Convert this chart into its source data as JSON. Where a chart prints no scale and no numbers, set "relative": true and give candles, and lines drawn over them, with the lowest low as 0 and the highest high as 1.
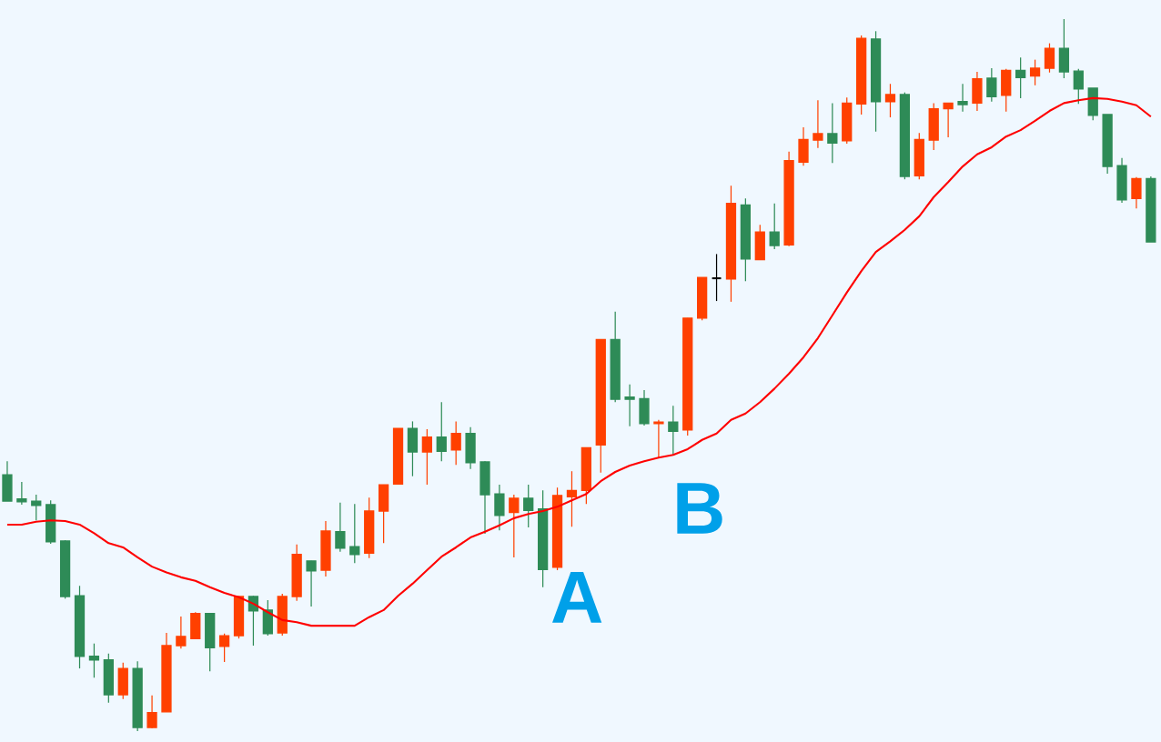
{
  "chart_data": {
    "type": "candlestick",
    "relative": true,
    "categories": [
      null,
      null,
      null,
      null,
      null,
      null,
      null,
      null,
      null,
      null,
      null,
      null,
      null,
      null,
      null,
      null,
      null,
      null,
      null,
      null,
      null,
      null,
      null,
      null,
      null,
      null,
      null,
      null,
      null,
      null,
      null,
      null,
      null,
      null,
      null,
      null,
      null,
      null,
      null,
      null,
      null,
      null,
      null,
      null,
      null,
      null,
      null,
      null,
      null,
      null,
      null,
      null,
      null,
      null,
      null,
      null,
      null,
      null,
      null,
      null,
      null,
      null,
      null,
      null,
      null,
      null,
      null,
      null,
      null,
      null,
      null,
      null,
      null,
      null,
      null,
      null,
      null,
      null,
      null,
      null
    ],
    "ohlc": [
      [
        0.36,
        0.379,
        0.323,
        0.323
      ],
      [
        0.326,
        0.35,
        0.318,
        0.322
      ],
      [
        0.323,
        0.332,
        0.296,
        0.317
      ],
      [
        0.318,
        0.324,
        0.263,
        0.266
      ],
      [
        0.267,
        0.268,
        0.186,
        0.189
      ],
      [
        0.19,
        0.204,
        0.088,
        0.105
      ],
      [
        0.105,
        0.123,
        0.075,
        0.1
      ],
      [
        0.1,
        0.109,
        0.04,
        0.051
      ],
      [
        0.051,
        0.096,
        0.045,
        0.088
      ],
      [
        0.088,
        0.098,
        0,
        0.005
      ],
      [
        0.005,
        0.05,
        0.004,
        0.026
      ],
      [
        0.027,
        0.138,
        0.027,
        0.12
      ],
      [
        0.12,
        0.161,
        0.116,
        0.133
      ],
      [
        0.13,
        0.167,
        0.129,
        0.165
      ],
      [
        0.165,
        0.165,
        0.084,
        0.117
      ],
      [
        0.119,
        0.137,
        0.097,
        0.134
      ],
      [
        0.134,
        0.189,
        0.13,
        0.189
      ],
      [
        0.189,
        0.19,
        0.12,
        0.169
      ],
      [
        0.17,
        0.184,
        0.134,
        0.137
      ],
      [
        0.138,
        0.193,
        0.134,
        0.189
      ],
      [
        0.189,
        0.262,
        0.183,
        0.248
      ],
      [
        0.239,
        0.239,
        0.175,
        0.225
      ],
      [
        0.226,
        0.295,
        0.217,
        0.281
      ],
      [
        0.28,
        0.321,
        0.252,
        0.257
      ],
      [
        0.259,
        0.319,
        0.236,
        0.248
      ],
      [
        0.25,
        0.328,
        0.243,
        0.309
      ],
      [
        0.309,
        0.346,
        0.264,
        0.346
      ],
      [
        0.347,
        0.425,
        0.347,
        0.425
      ],
      [
        0.425,
        0.435,
        0.358,
        0.392
      ],
      [
        0.392,
        0.424,
        0.346,
        0.413
      ],
      [
        0.413,
        0.462,
        0.379,
        0.393
      ],
      [
        0.395,
        0.435,
        0.374,
        0.418
      ],
      [
        0.418,
        0.427,
        0.368,
        0.377
      ],
      [
        0.378,
        0.379,
        0.277,
        0.332
      ],
      [
        0.333,
        0.346,
        0.282,
        0.303
      ],
      [
        0.307,
        0.332,
        0.244,
        0.327
      ],
      [
        0.327,
        0.346,
        0.286,
        0.31
      ],
      [
        0.312,
        0.338,
        0.202,
        0.227
      ],
      [
        0.23,
        0.342,
        0.226,
        0.331
      ],
      [
        0.329,
        0.365,
        0.287,
        0.338
      ],
      [
        0.338,
        0.398,
        0.319,
        0.398
      ],
      [
        0.402,
        0.55,
        0.363,
        0.55
      ],
      [
        0.55,
        0.589,
        0.462,
        0.466
      ],
      [
        0.469,
        0.487,
        0.428,
        0.466
      ],
      [
        0.467,
        0.479,
        0.429,
        0.432
      ],
      [
        0.432,
        0.437,
        0.384,
        0.434
      ],
      [
        0.434,
        0.457,
        0.387,
        0.421
      ],
      [
        0.423,
        0.58,
        0.415,
        0.58
      ],
      [
        0.58,
        0.637,
        0.577,
        0.637
      ],
      [
        0.636,
        0.67,
        0.604,
        0.636
      ],
      [
        0.635,
        0.766,
        0.603,
        0.741
      ],
      [
        0.739,
        0.748,
        0.632,
        0.663
      ],
      [
        0.662,
        0.711,
        0.662,
        0.701
      ],
      [
        0.701,
        0.741,
        0.677,
        0.682
      ],
      [
        0.683,
        0.814,
        0.681,
        0.801
      ],
      [
        0.799,
        0.848,
        0.794,
        0.831
      ],
      [
        0.83,
        0.886,
        0.819,
        0.839
      ],
      [
        0.839,
        0.882,
        0.798,
        0.826
      ],
      [
        0.829,
        0.89,
        0.825,
        0.882
      ],
      [
        0.881,
        0.977,
        0.866,
        0.973
      ],
      [
        0.972,
        0.983,
        0.842,
        0.884
      ],
      [
        0.884,
        0.909,
        0.862,
        0.894
      ],
      [
        0.894,
        0.897,
        0.775,
        0.779
      ],
      [
        0.78,
        0.84,
        0.775,
        0.831
      ],
      [
        0.83,
        0.882,
        0.816,
        0.874
      ],
      [
        0.874,
        0.882,
        0.834,
        0.882
      ],
      [
        0.884,
        0.909,
        0.87,
        0.88
      ],
      [
        0.882,
        0.926,
        0.871,
        0.916
      ],
      [
        0.917,
        0.931,
        0.884,
        0.891
      ],
      [
        0.893,
        0.93,
        0.87,
        0.928
      ],
      [
        0.928,
        0.946,
        0.889,
        0.918
      ],
      [
        0.92,
        0.943,
        0.907,
        0.931
      ],
      [
        0.931,
        0.966,
        0.925,
        0.959
      ],
      [
        0.959,
        1,
        0.917,
        0.926
      ],
      [
        0.927,
        0.93,
        0.881,
        0.902
      ],
      [
        0.903,
        0.903,
        0.858,
        0.865
      ],
      [
        0.866,
        0.866,
        0.783,
        0.793
      ],
      [
        0.794,
        0.805,
        0.742,
        0.746
      ],
      [
        0.748,
        0.778,
        0.734,
        0.776
      ],
      [
        0.776,
        0.779,
        0.687,
        0.687
      ]
    ],
    "colors": [
      "#2e8b57",
      "#2e8b57",
      "#2e8b57",
      "#2e8b57",
      "#2e8b57",
      "#2e8b57",
      "#2e8b57",
      "#2e8b57",
      "#ff4000",
      "#2e8b57",
      "#ff4000",
      "#ff4000",
      "#ff4000",
      "#ff4000",
      "#2e8b57",
      "#ff4000",
      "#ff4000",
      "#2e8b57",
      "#2e8b57",
      "#ff4000",
      "#ff4000",
      "#2e8b57",
      "#ff4000",
      "#2e8b57",
      "#2e8b57",
      "#ff4000",
      "#ff4000",
      "#ff4000",
      "#2e8b57",
      "#ff4000",
      "#2e8b57",
      "#ff4000",
      "#2e8b57",
      "#2e8b57",
      "#2e8b57",
      "#ff4000",
      "#2e8b57",
      "#2e8b57",
      "#ff4000",
      "#ff4000",
      "#ff4000",
      "#ff4000",
      "#2e8b57",
      "#2e8b57",
      "#2e8b57",
      "#ff4000",
      "#2e8b57",
      "#ff4000",
      "#ff4000",
      "#000000",
      "#ff4000",
      "#2e8b57",
      "#ff4000",
      "#2e8b57",
      "#ff4000",
      "#ff4000",
      "#ff4000",
      "#2e8b57",
      "#ff4000",
      "#ff4000",
      "#2e8b57",
      "#ff4000",
      "#2e8b57",
      "#ff4000",
      "#ff4000",
      "#ff4000",
      "#2e8b57",
      "#ff4000",
      "#2e8b57",
      "#ff4000",
      "#2e8b57",
      "#ff4000",
      "#ff4000",
      "#2e8b57",
      "#2e8b57",
      "#2e8b57",
      "#2e8b57",
      "#2e8b57",
      "#ff4000",
      "#2e8b57"
    ],
    "series": [
      {
        "type": "line",
        "color": "#ff0000",
        "values": [
          0.29,
          0.29,
          0.294,
          0.296,
          0.295,
          0.29,
          0.278,
          0.264,
          0.258,
          0.244,
          0.231,
          0.223,
          0.216,
          0.211,
          0.202,
          0.194,
          0.188,
          0.179,
          0.167,
          0.156,
          0.153,
          0.148,
          0.148,
          0.148,
          0.148,
          0.16,
          0.17,
          0.19,
          0.207,
          0.226,
          0.245,
          0.258,
          0.272,
          0.28,
          0.289,
          0.299,
          0.305,
          0.309,
          0.315,
          0.324,
          0.333,
          0.351,
          0.364,
          0.373,
          0.379,
          0.384,
          0.388,
          0.396,
          0.409,
          0.418,
          0.437,
          0.446,
          0.462,
          0.481,
          0.502,
          0.525,
          0.552,
          0.584,
          0.616,
          0.646,
          0.673,
          0.688,
          0.704,
          0.723,
          0.75,
          0.771,
          0.793,
          0.81,
          0.82,
          0.835,
          0.844,
          0.857,
          0.871,
          0.882,
          0.886,
          0.889,
          0.888,
          0.884,
          0.879,
          0.863
        ]
      }
    ],
    "annotations": [
      "A",
      "B"
    ]
  }
}
